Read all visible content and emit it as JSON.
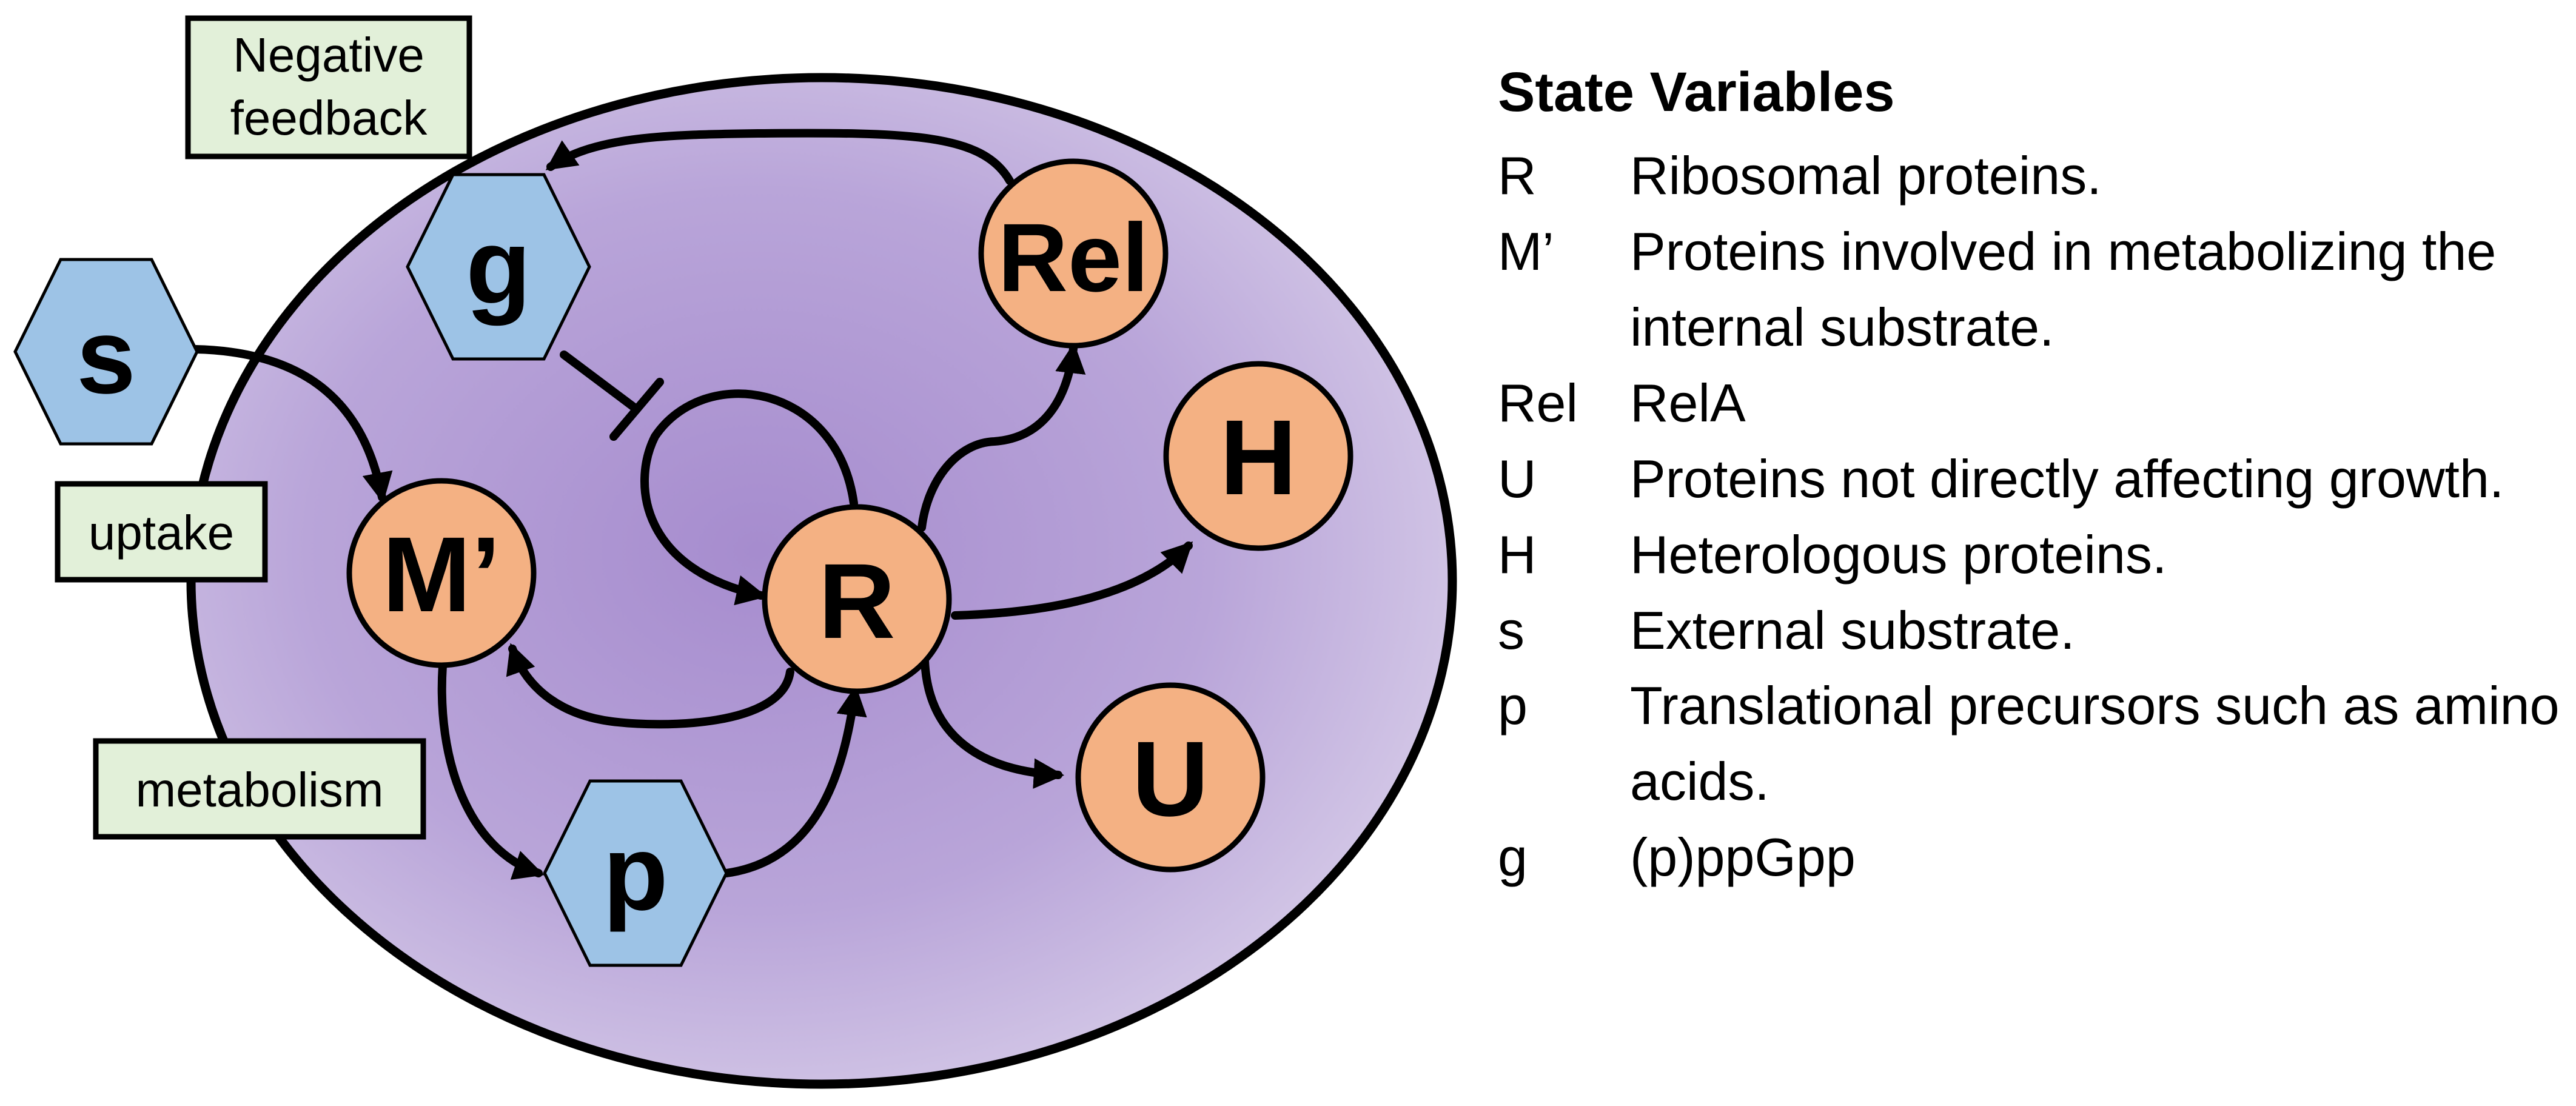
{
  "nodes": {
    "s": "s",
    "g": "g",
    "p": "p",
    "m_prime": "M’",
    "r": "R",
    "rel": "Rel",
    "h": "H",
    "u": "U"
  },
  "tags": {
    "negative_feedback": [
      "Negative",
      "feedback"
    ],
    "uptake": "uptake",
    "metabolism": "metabolism"
  },
  "colors": {
    "cell_fill": "#b49fd4",
    "cell_center": "#a58ccc",
    "cell_edge": "#d2c6e5",
    "protein_fill": "#f4b183",
    "metabolite_fill": "#9dc3e6",
    "tag_fill": "#e2f0d9"
  },
  "legend": {
    "title": "State Variables",
    "items": [
      {
        "symbol": "R",
        "description": "Ribosomal proteins."
      },
      {
        "symbol": "M’",
        "description": "Proteins involved in metabolizing the internal substrate."
      },
      {
        "symbol": "Rel",
        "description": "RelA"
      },
      {
        "symbol": "U",
        "description": "Proteins not directly affecting growth."
      },
      {
        "symbol": "H",
        "description": "Heterologous proteins."
      },
      {
        "symbol": "s",
        "description": "External substrate."
      },
      {
        "symbol": "p",
        "description": "Translational precursors such as amino acids."
      },
      {
        "symbol": "g",
        "description": "(p)ppGpp"
      }
    ]
  }
}
